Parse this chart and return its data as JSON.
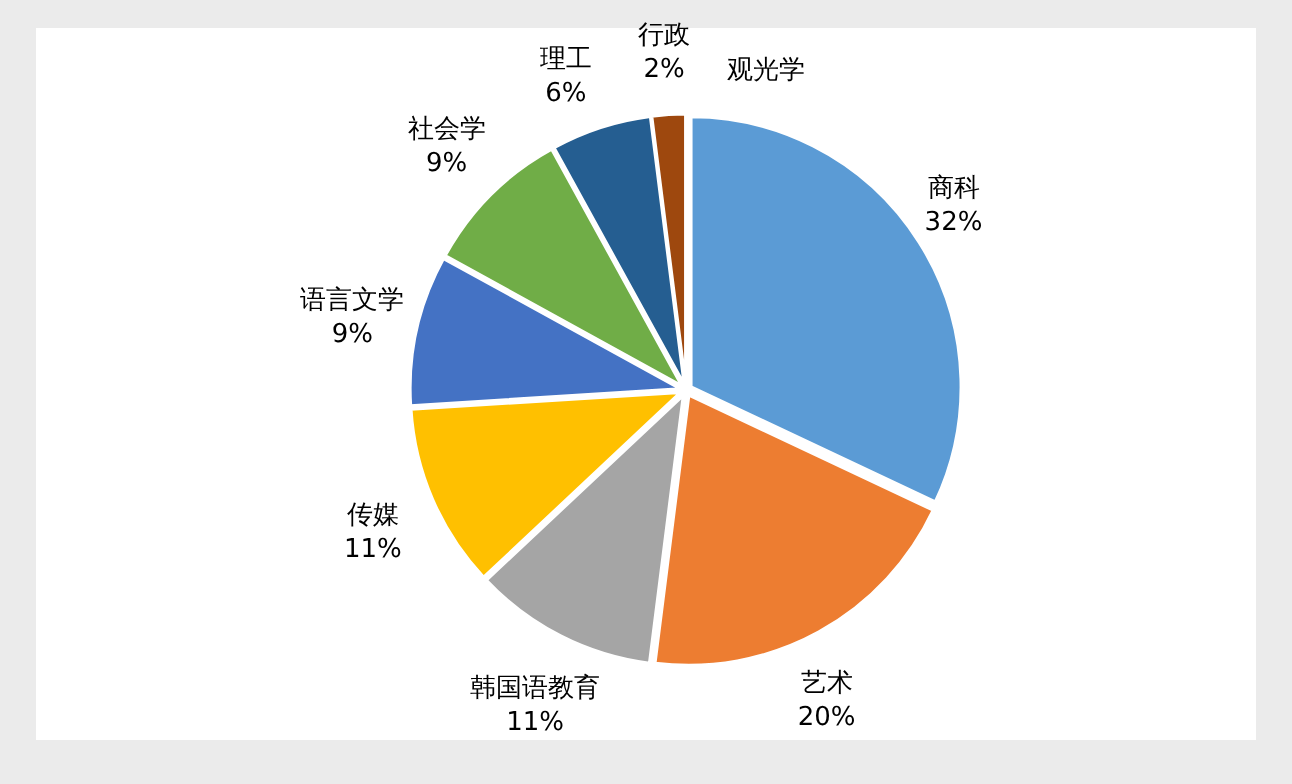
{
  "chart_data": {
    "type": "pie",
    "categories": [
      "商科",
      "艺术",
      "韩国语教育",
      "传媒",
      "语言文学",
      "社会学",
      "理工",
      "行政",
      "观光学"
    ],
    "values": [
      32,
      20,
      11,
      11,
      9,
      9,
      6,
      2,
      0
    ],
    "value_labels": [
      "32%",
      "20%",
      "11%",
      "11%",
      "9%",
      "9%",
      "6%",
      "2%",
      null
    ],
    "colors": [
      "#5b9bd5",
      "#ed7d31",
      "#a5a5a5",
      "#ffc000",
      "#4472c4",
      "#70ad47",
      "#255e91",
      "#9e480e",
      "#636363"
    ]
  }
}
